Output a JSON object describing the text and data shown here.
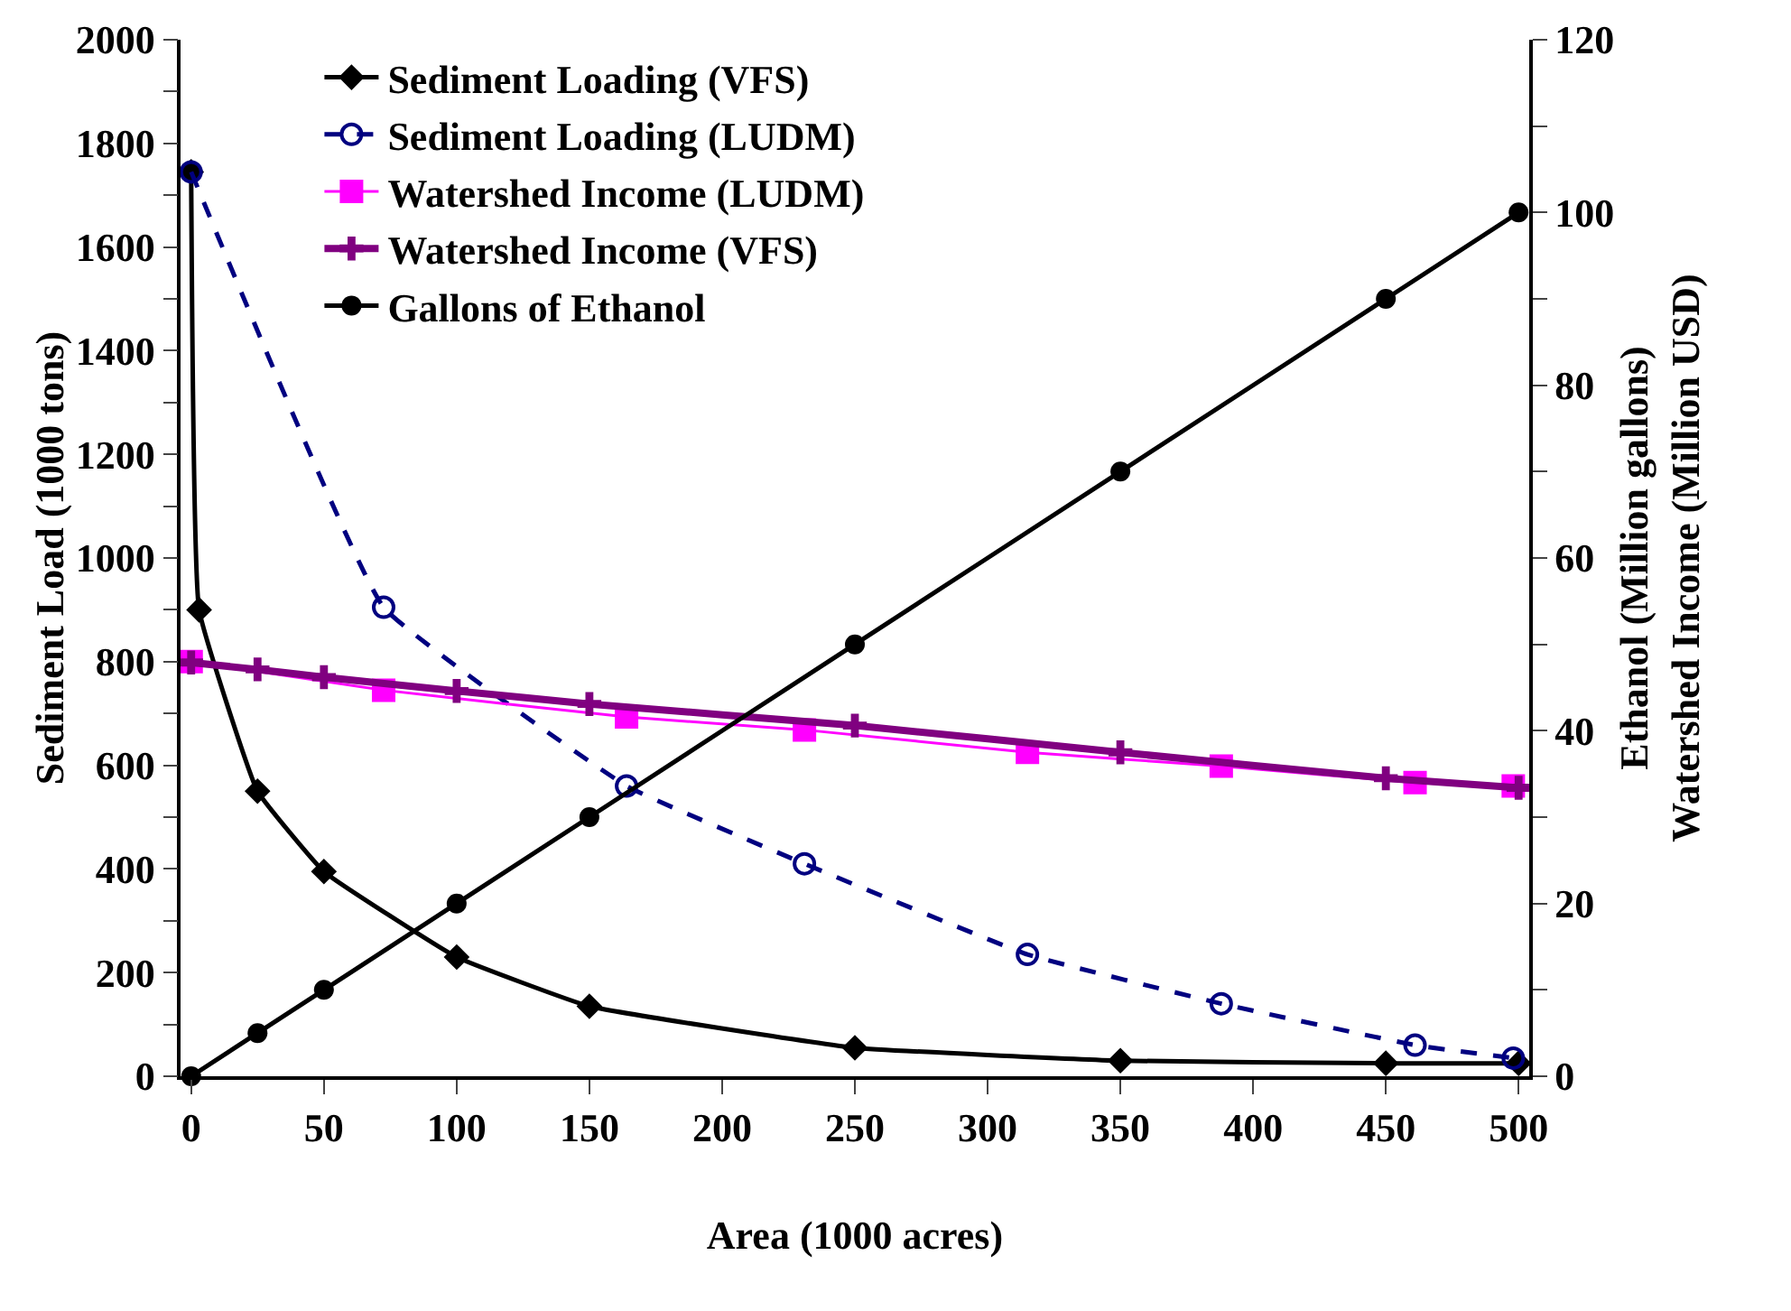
{
  "chart_data": {
    "type": "line",
    "xlabel": "Area (1000 acres)",
    "ylabel": "Sediment Load (1000 tons)",
    "y2label": "Ethanol (Million gallons)\nWatershed Income (Million USD)",
    "xlim": [
      -4,
      504
    ],
    "xticks": [
      0,
      50,
      100,
      150,
      200,
      250,
      300,
      350,
      400,
      450,
      500
    ],
    "ylim": [
      0,
      2000
    ],
    "yticks": [
      0,
      {
        "value": 100,
        "label": null
      },
      200,
      {
        "value": 300,
        "label": null
      },
      400,
      {
        "value": 500,
        "label": null
      },
      600,
      {
        "value": 700,
        "label": null
      },
      800,
      {
        "value": 900,
        "label": null
      },
      1000,
      {
        "value": 1100,
        "label": null
      },
      1200,
      {
        "value": 1300,
        "label": null
      },
      1400,
      {
        "value": 1500,
        "label": null
      },
      1600,
      {
        "value": 1700,
        "label": null
      },
      1800,
      {
        "value": 1900,
        "label": null
      },
      2000
    ],
    "y2lim": [
      0,
      120
    ],
    "y2ticks": [
      0,
      {
        "value": 10,
        "label": null
      },
      20,
      {
        "value": 30,
        "label": null
      },
      40,
      {
        "value": 50,
        "label": null
      },
      60,
      {
        "value": 70,
        "label": null
      },
      80,
      {
        "value": 90,
        "label": null
      },
      100,
      {
        "value": 110,
        "label": null
      },
      120
    ],
    "grid": false,
    "legend": "top left",
    "series": [
      {
        "name": "Sediment Loading (VFS)",
        "color": "#000000",
        "marker": "diamond",
        "line_style": "solid",
        "x": [
          0,
          3,
          25,
          50,
          100,
          150,
          250,
          350,
          450,
          500
        ],
        "values": [
          1745,
          900,
          550,
          395,
          230,
          135,
          55,
          30,
          25,
          25
        ]
      },
      {
        "name": "Sediment Loading (LUDM)",
        "color": "#000080",
        "marker": "circle",
        "line_style": "dashed",
        "x": [
          0,
          72.5,
          164,
          231,
          315,
          388,
          461,
          498
        ],
        "values": [
          1745,
          905,
          560,
          410,
          235,
          140,
          60,
          35
        ]
      },
      {
        "name": "Watershed Income (LUDM)",
        "color": "#ff00ff",
        "marker": "square",
        "line_style": "solid",
        "axis": "y2",
        "x": [
          0,
          72.5,
          164,
          231,
          315,
          388,
          461,
          498
        ],
        "values": [
          48,
          44.7,
          41.6,
          40.1,
          37.5,
          35.9,
          34,
          33.6
        ]
      },
      {
        "name": "Watershed Income (VFS)",
        "color": "#800080",
        "marker": "cross",
        "line_style": "solid",
        "axis": "y2",
        "x": [
          0,
          25,
          50,
          100,
          150,
          250,
          350,
          450,
          500
        ],
        "values": [
          47.9,
          47.1,
          46.2,
          44.6,
          43.1,
          40.6,
          37.5,
          34.5,
          33.4
        ]
      },
      {
        "name": "Gallons of Ethanol",
        "color": "#000000",
        "marker": "circle",
        "line_style": "solid",
        "axis": "y2",
        "x": [
          0,
          25,
          50,
          100,
          150,
          250,
          350,
          450,
          500
        ],
        "values": [
          0,
          5,
          10,
          20,
          30,
          50,
          70,
          90,
          100
        ]
      }
    ]
  }
}
